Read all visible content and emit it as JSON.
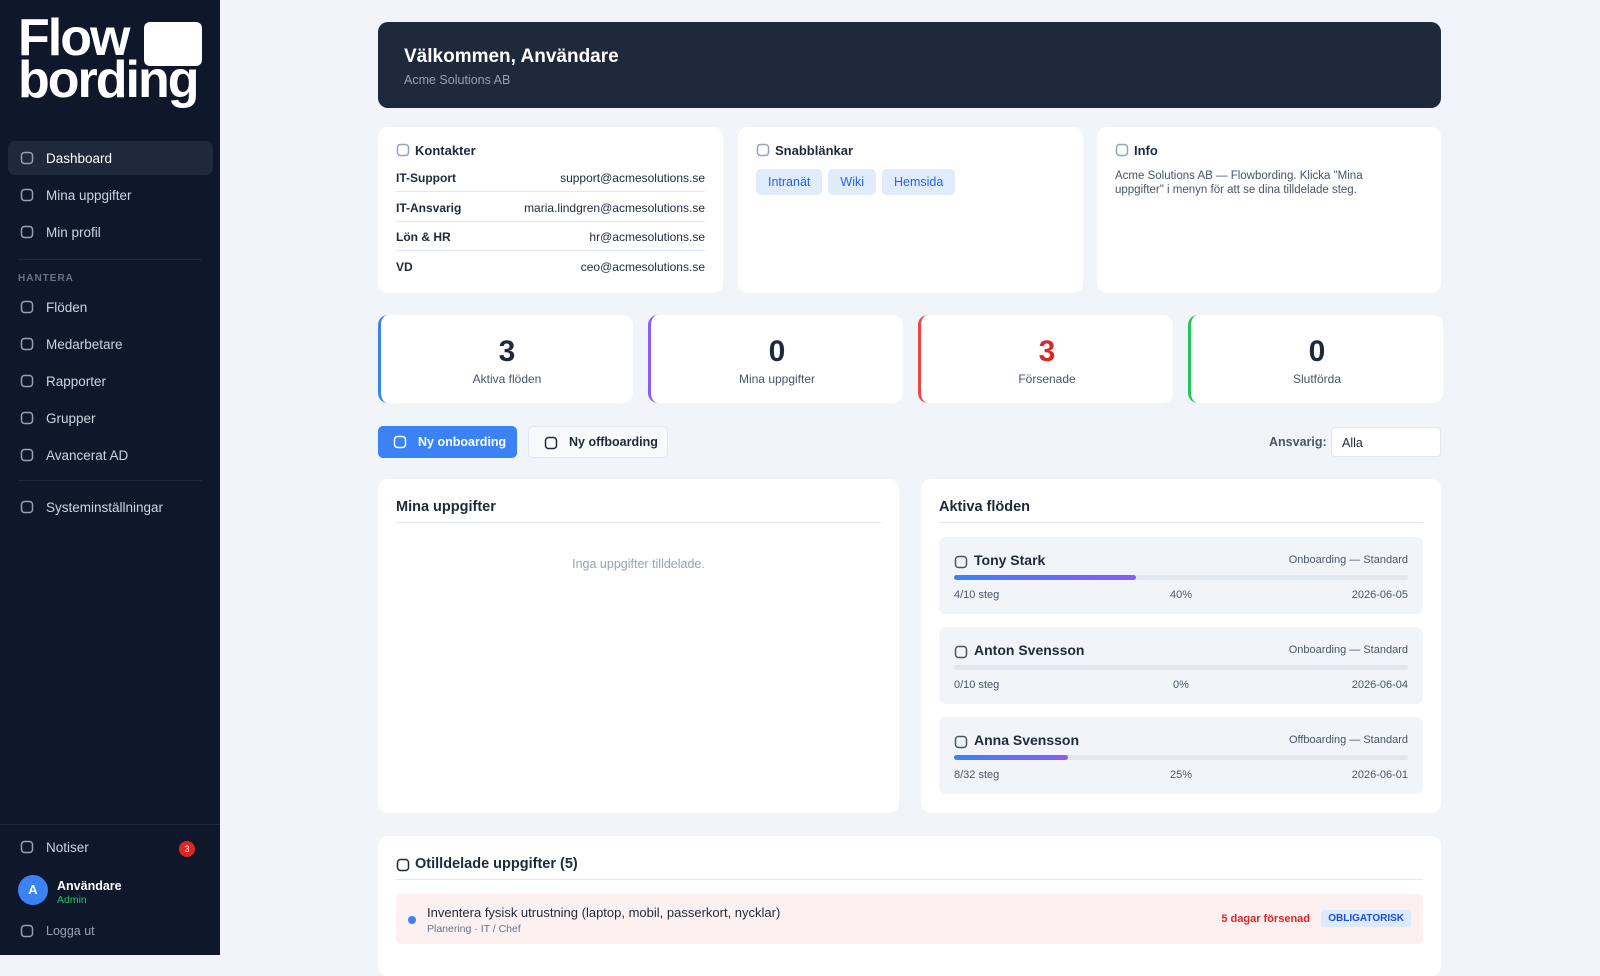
{
  "brand": {
    "logo_line1": "Flow",
    "logo_line2": "bording"
  },
  "nav": {
    "main": [
      "Dashboard",
      "Mina uppgifter",
      "Min profil"
    ],
    "section_label": "HANTERA",
    "manage": [
      "Flöden",
      "Medarbetare",
      "Rapporter",
      "Grupper",
      "Avancerat AD"
    ],
    "settings": "Systeminställningar"
  },
  "sidebar_footer": {
    "notifications": "Notiser",
    "notification_count": 3,
    "avatar": "A",
    "user_name": "Användare",
    "user_role": "Admin",
    "logout": "Logga ut"
  },
  "header": {
    "title": "Välkommen, Användare",
    "subtitle": "Acme Solutions AB"
  },
  "contacts": {
    "title": "Kontakter",
    "rows": [
      [
        "IT-Support",
        "support@acmesolutions.se"
      ],
      [
        "IT-Ansvarig",
        "maria.lindgren@acmesolutions.se"
      ],
      [
        "Lön & HR",
        "hr@acmesolutions.se"
      ],
      [
        "VD",
        "ceo@acmesolutions.se"
      ]
    ]
  },
  "quick_links": {
    "title": "Snabblänkar",
    "links": [
      "Intranät",
      "Wiki",
      "Hemsida"
    ]
  },
  "info": {
    "title": "Info",
    "text": "Acme Solutions AB — Flowbording. Klicka \"Mina uppgifter\" i menyn för att se dina tilldelade steg."
  },
  "stats": [
    {
      "value": 3,
      "label": "Aktiva flöden"
    },
    {
      "value": 0,
      "label": "Mina uppgifter"
    },
    {
      "value": 3,
      "label": "Försenade"
    },
    {
      "value": 0,
      "label": "Slutförda"
    }
  ],
  "actions": {
    "new_onboarding": "Ny onboarding",
    "new_offboarding": "Ny offboarding",
    "filter_label": "Ansvarig:",
    "filter_value": "Alla"
  },
  "my_tasks": {
    "title": "Mina uppgifter",
    "empty": "Inga uppgifter tilldelade."
  },
  "active_flows": {
    "title": "Aktiva flöden",
    "items": [
      {
        "name": "Tony Stark",
        "type": "Onboarding — Standard",
        "steps": "4/10 steg",
        "percent": "40%",
        "date": "2026-06-05"
      },
      {
        "name": "Anton Svensson",
        "type": "Onboarding — Standard",
        "steps": "0/10 steg",
        "percent": "0%",
        "date": "2026-06-04"
      },
      {
        "name": "Anna Svensson",
        "type": "Offboarding — Standard",
        "steps": "8/32 steg",
        "percent": "25%",
        "date": "2026-06-01"
      }
    ]
  },
  "unassigned": {
    "title": "Otilldelade uppgifter (5)",
    "items": [
      {
        "task": "Inventera fysisk utrustning (laptop, mobil, passerkort, nycklar)",
        "meta": "Planering · IT / Chef",
        "status": "5 dagar försenad",
        "tag": "OBLIGATORISK"
      }
    ]
  }
}
